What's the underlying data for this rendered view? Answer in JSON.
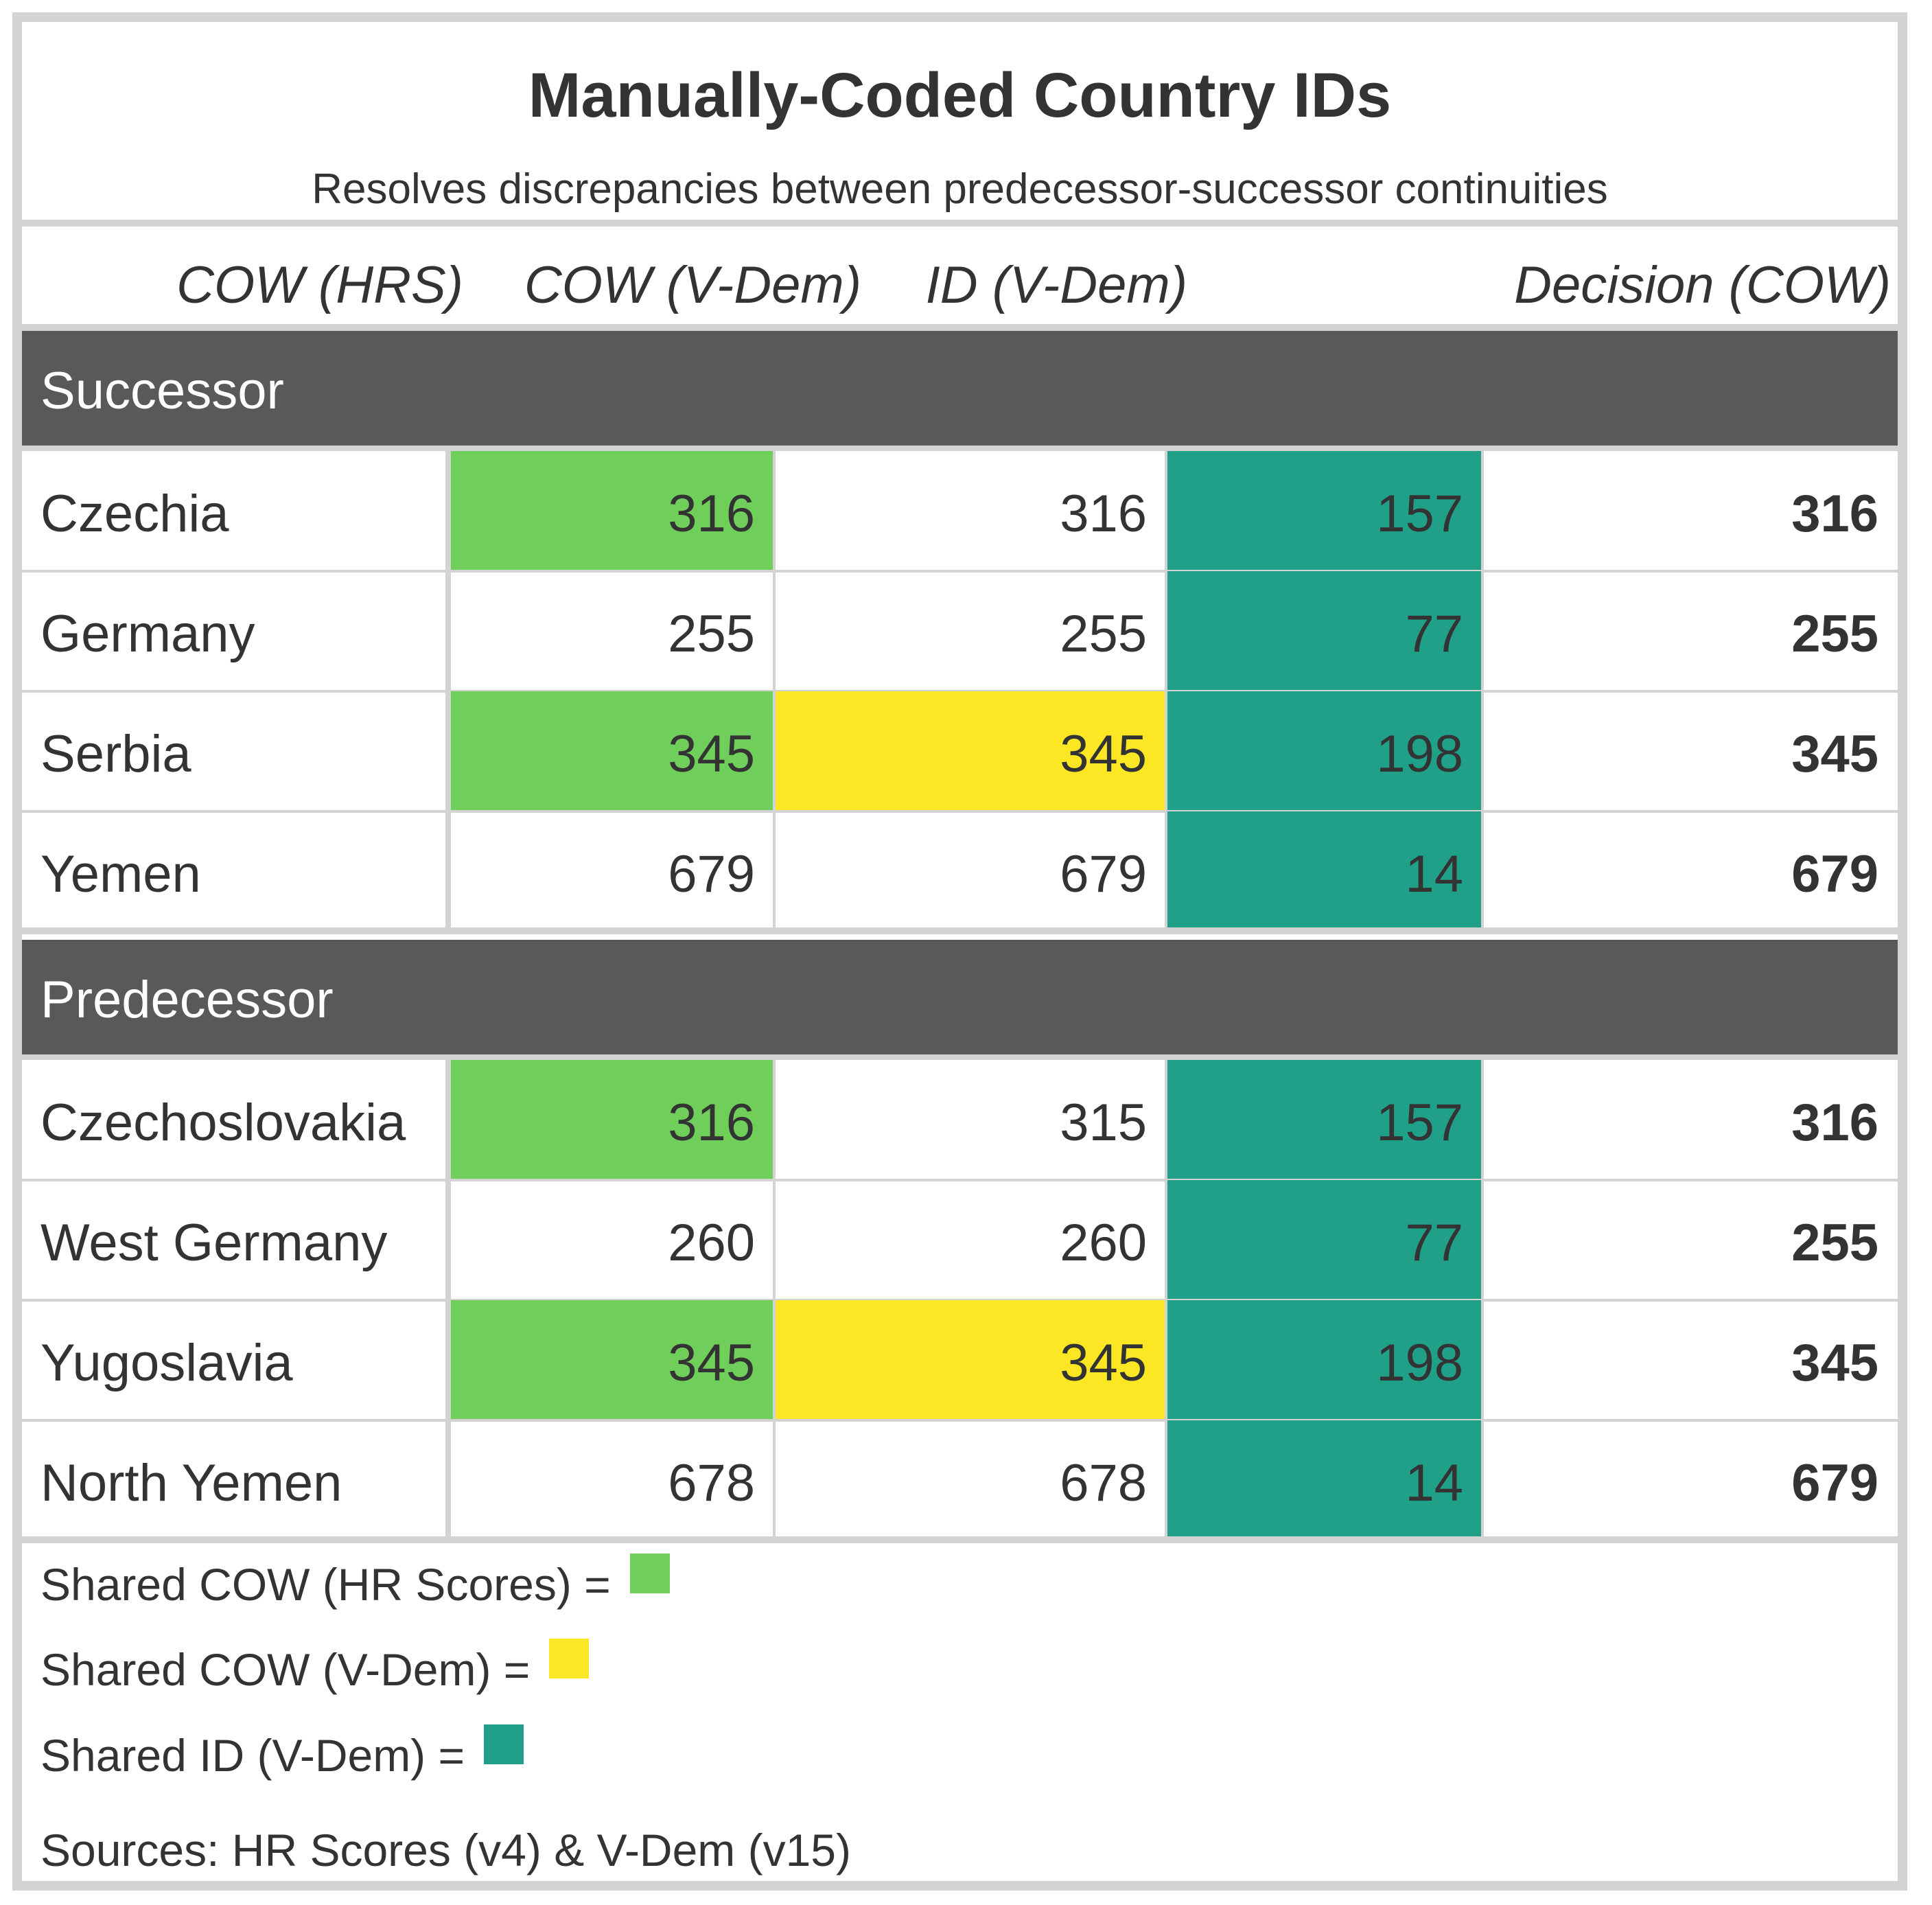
{
  "chart_data": {
    "type": "table",
    "title": "Manually-Coded Country IDs",
    "subtitle": "Resolves discrepancies between predecessor-successor continuities",
    "columns": [
      "COW (HRS)",
      "COW (V-Dem)",
      "ID (V-Dem)",
      "Decision (COW)"
    ],
    "colors": {
      "shared_cow_hrs": "#6fcf5a",
      "shared_cow_vdem": "#fde725",
      "shared_id_vdem": "#20a089",
      "group_header_bg": "#595959",
      "grid": "#d3d3d3"
    },
    "groups": [
      {
        "name": "Successor",
        "rows": [
          {
            "label": "Czechia",
            "cow_hrs": "316",
            "cow_vdem": "316",
            "id_vdem": "157",
            "decision": "316",
            "hl": [
              "cow_hrs",
              "id_vdem"
            ]
          },
          {
            "label": "Germany",
            "cow_hrs": "255",
            "cow_vdem": "255",
            "id_vdem": "77",
            "decision": "255",
            "hl": [
              "id_vdem"
            ]
          },
          {
            "label": "Serbia",
            "cow_hrs": "345",
            "cow_vdem": "345",
            "id_vdem": "198",
            "decision": "345",
            "hl": [
              "cow_hrs",
              "cow_vdem",
              "id_vdem"
            ]
          },
          {
            "label": "Yemen",
            "cow_hrs": "679",
            "cow_vdem": "679",
            "id_vdem": "14",
            "decision": "679",
            "hl": [
              "id_vdem"
            ]
          }
        ]
      },
      {
        "name": "Predecessor",
        "rows": [
          {
            "label": "Czechoslovakia",
            "cow_hrs": "316",
            "cow_vdem": "315",
            "id_vdem": "157",
            "decision": "316",
            "hl": [
              "cow_hrs",
              "id_vdem"
            ]
          },
          {
            "label": "West Germany",
            "cow_hrs": "260",
            "cow_vdem": "260",
            "id_vdem": "77",
            "decision": "255",
            "hl": [
              "id_vdem"
            ]
          },
          {
            "label": "Yugoslavia",
            "cow_hrs": "345",
            "cow_vdem": "345",
            "id_vdem": "198",
            "decision": "345",
            "hl": [
              "cow_hrs",
              "cow_vdem",
              "id_vdem"
            ]
          },
          {
            "label": "North Yemen",
            "cow_hrs": "678",
            "cow_vdem": "678",
            "id_vdem": "14",
            "decision": "679",
            "hl": [
              "id_vdem"
            ]
          }
        ]
      }
    ],
    "legend": [
      {
        "text": "Shared COW (HR Scores) =",
        "key": "shared_cow_hrs"
      },
      {
        "text": "Shared COW (V-Dem) =",
        "key": "shared_cow_vdem"
      },
      {
        "text": "Shared ID (V-Dem) =",
        "key": "shared_id_vdem"
      }
    ],
    "source_note": "Sources: HR Scores (v4) & V-Dem (v15)"
  }
}
